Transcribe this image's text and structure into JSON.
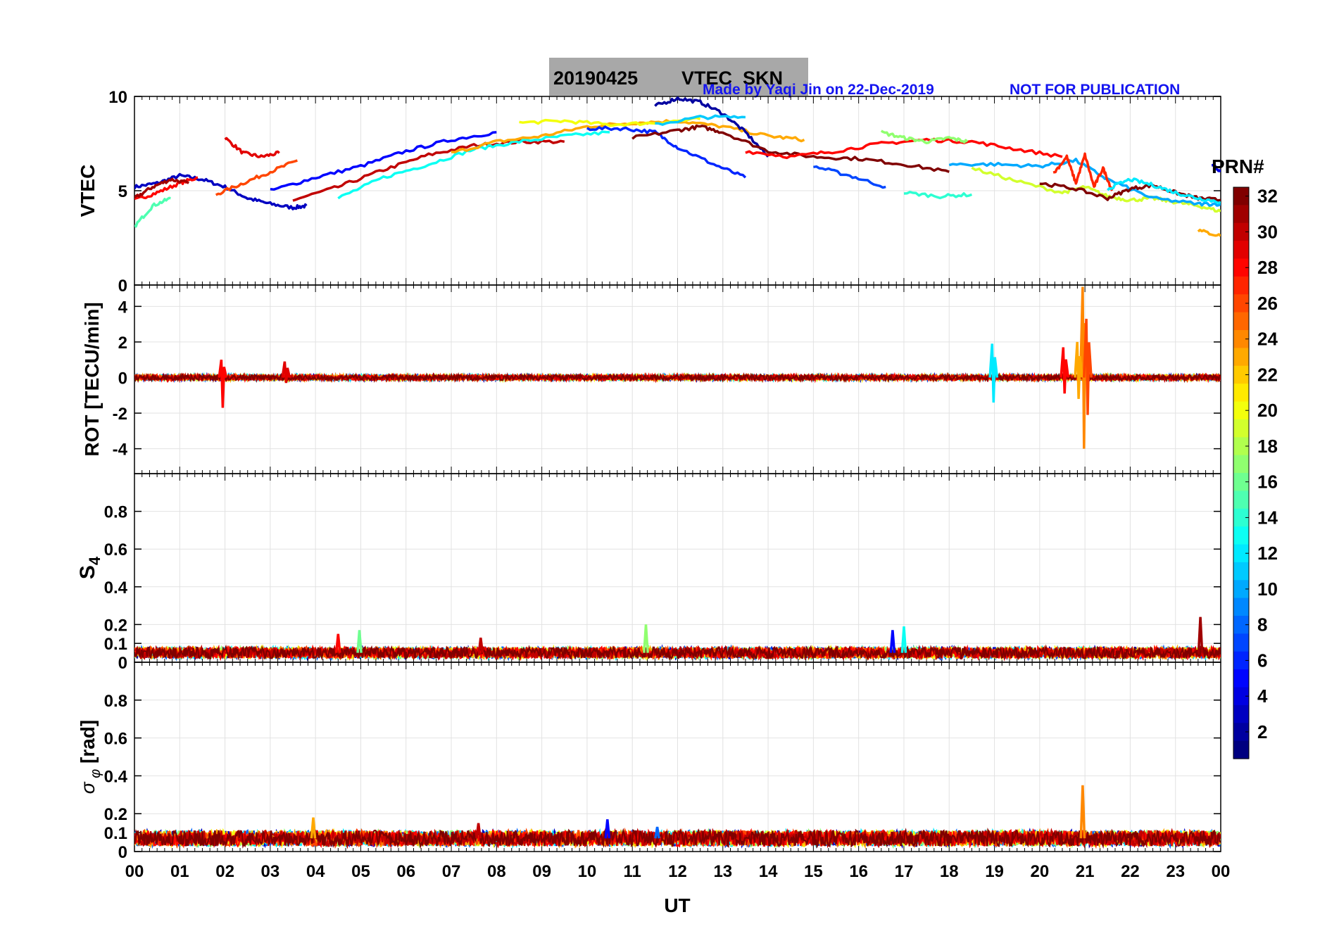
{
  "title_box": {
    "date": "20190425",
    "label": "VTEC  SKN"
  },
  "credit": "Made by Yaqi Jin on 22-Dec-2019",
  "notice": "NOT FOR PUBLICATION",
  "colorbar": {
    "title": "PRN#",
    "range": [
      1,
      32
    ],
    "ticks": [
      "2",
      "4",
      "6",
      "8",
      "10",
      "12",
      "14",
      "16",
      "18",
      "20",
      "22",
      "24",
      "26",
      "28",
      "30",
      "32"
    ],
    "colormap": "jet"
  },
  "x_axis": {
    "label": "UT",
    "range": [
      0,
      24
    ],
    "ticks": [
      "00",
      "01",
      "02",
      "03",
      "04",
      "05",
      "06",
      "07",
      "08",
      "09",
      "10",
      "11",
      "12",
      "13",
      "14",
      "15",
      "16",
      "17",
      "18",
      "19",
      "20",
      "21",
      "22",
      "23",
      "00"
    ]
  },
  "chart_data": [
    {
      "type": "line",
      "panel": "vtec",
      "ylabel": "VTEC",
      "ylim": [
        0,
        10
      ],
      "yticks": [
        "0",
        "5",
        "10"
      ],
      "grid": true,
      "series": [
        {
          "prn": 3,
          "x": [
            0.0,
            0.5,
            1.0,
            1.5,
            2.0,
            2.5,
            3.0,
            3.5,
            3.8
          ],
          "y": [
            5.2,
            5.4,
            5.8,
            5.6,
            5.2,
            4.6,
            4.3,
            4.1,
            4.2
          ]
        },
        {
          "prn": 28,
          "x": [
            0.0,
            0.5,
            1.0,
            1.4
          ],
          "y": [
            4.5,
            4.9,
            5.4,
            5.7
          ]
        },
        {
          "prn": 29,
          "x": [
            2.0,
            2.4,
            2.8,
            3.2
          ],
          "y": [
            7.8,
            7.0,
            6.8,
            7.0
          ]
        },
        {
          "prn": 31,
          "x": [
            0.0,
            0.4,
            0.8,
            1.2
          ],
          "y": [
            4.6,
            5.2,
            5.6,
            5.4
          ]
        },
        {
          "prn": 15,
          "x": [
            0.0,
            0.4,
            0.8
          ],
          "y": [
            3.1,
            4.2,
            4.6
          ]
        },
        {
          "prn": 26,
          "x": [
            1.8,
            2.4,
            3.0,
            3.6
          ],
          "y": [
            4.8,
            5.4,
            6.0,
            6.6
          ]
        },
        {
          "prn": 30,
          "x": [
            3.5,
            4.5,
            5.5,
            6.5,
            7.5,
            8.5,
            9.5
          ],
          "y": [
            4.5,
            5.2,
            6.1,
            6.9,
            7.4,
            7.6,
            7.6
          ]
        },
        {
          "prn": 5,
          "x": [
            3.0,
            4.0,
            5.0,
            6.0,
            7.0,
            8.0
          ],
          "y": [
            5.0,
            5.7,
            6.3,
            7.1,
            7.7,
            8.1
          ]
        },
        {
          "prn": 13,
          "x": [
            4.5,
            5.5,
            6.5,
            7.5,
            8.5,
            9.5,
            10.5
          ],
          "y": [
            4.6,
            5.7,
            6.4,
            7.2,
            7.6,
            7.9,
            8.1
          ]
        },
        {
          "prn": 23,
          "x": [
            7.0,
            8.0,
            9.0,
            10.0,
            11.0,
            12.0,
            13.0,
            14.0,
            14.8
          ],
          "y": [
            7.0,
            7.6,
            7.9,
            8.4,
            8.6,
            8.7,
            8.4,
            7.9,
            7.7
          ]
        },
        {
          "prn": 20,
          "x": [
            8.5,
            9.5,
            10.5,
            11.5,
            12.5
          ],
          "y": [
            8.6,
            8.7,
            8.5,
            8.6,
            8.8
          ]
        },
        {
          "prn": 2,
          "x": [
            11.5,
            12.0,
            12.5,
            13.0,
            13.5,
            14.0
          ],
          "y": [
            9.5,
            9.9,
            9.7,
            9.1,
            8.1,
            6.8
          ]
        },
        {
          "prn": 6,
          "x": [
            10.0,
            10.8,
            11.5,
            12.0,
            12.8,
            13.5
          ],
          "y": [
            8.3,
            8.3,
            8.1,
            7.3,
            6.4,
            5.7
          ]
        },
        {
          "prn": 32,
          "x": [
            11.0,
            12.0,
            12.5,
            13.0,
            14.0,
            15.0,
            16.0,
            17.0,
            18.0
          ],
          "y": [
            7.8,
            8.2,
            8.4,
            8.1,
            7.1,
            6.8,
            6.7,
            6.4,
            6.0
          ]
        },
        {
          "prn": 11,
          "x": [
            11.5,
            12.5,
            13.5
          ],
          "y": [
            8.5,
            8.9,
            8.9
          ]
        },
        {
          "prn": 28,
          "x": [
            13.5,
            14.5,
            15.5,
            16.5,
            17.5,
            18.5,
            19.5,
            20.5
          ],
          "y": [
            7.1,
            6.8,
            7.1,
            7.5,
            7.7,
            7.6,
            7.2,
            6.8
          ]
        },
        {
          "prn": 7,
          "x": [
            15.0,
            15.8,
            16.6
          ],
          "y": [
            6.3,
            5.8,
            5.2
          ]
        },
        {
          "prn": 17,
          "x": [
            16.5,
            17.0,
            17.5,
            18.0,
            18.4
          ],
          "y": [
            8.1,
            7.8,
            7.6,
            7.8,
            7.6
          ]
        },
        {
          "prn": 14,
          "x": [
            17.0,
            17.8,
            18.5
          ],
          "y": [
            4.9,
            4.7,
            4.8
          ]
        },
        {
          "prn": 19,
          "x": [
            18.5,
            19.5,
            20.5,
            21.0,
            21.5,
            22.0,
            22.5,
            23.0,
            23.5,
            24.0
          ],
          "y": [
            6.2,
            5.5,
            4.9,
            5.2,
            4.7,
            4.5,
            4.6,
            4.4,
            4.2,
            3.9
          ]
        },
        {
          "prn": 10,
          "x": [
            18.0,
            19.0,
            20.0,
            20.8,
            21.5,
            22.5,
            23.5,
            24.0
          ],
          "y": [
            6.4,
            6.4,
            6.3,
            6.6,
            5.6,
            4.6,
            4.3,
            4.3
          ]
        },
        {
          "prn": 27,
          "x": [
            20.3,
            20.6,
            20.8,
            21.0,
            21.2,
            21.4,
            21.6
          ],
          "y": [
            5.9,
            6.8,
            5.4,
            6.9,
            5.2,
            6.2,
            5.0
          ]
        },
        {
          "prn": 32,
          "x": [
            20.0,
            20.8,
            21.5,
            22.0,
            22.5,
            23.0,
            23.5,
            24.0
          ],
          "y": [
            5.4,
            5.1,
            4.6,
            5.1,
            5.3,
            4.9,
            4.6,
            4.5
          ]
        },
        {
          "prn": 12,
          "x": [
            21.5,
            22.0,
            22.5,
            23.0,
            23.5,
            24.0
          ],
          "y": [
            5.1,
            5.6,
            5.3,
            4.9,
            4.6,
            4.4
          ]
        },
        {
          "prn": 23,
          "x": [
            23.5,
            24.0
          ],
          "y": [
            2.9,
            2.6
          ]
        },
        {
          "prn": 4,
          "x": [
            23.8,
            24.0
          ],
          "y": [
            6.4,
            6.0
          ]
        }
      ]
    },
    {
      "type": "line",
      "panel": "rot",
      "ylabel": "ROT [TECU/min]",
      "ylim": [
        -5.4,
        5.2
      ],
      "yticks": [
        "-4",
        "-2",
        "0",
        "2",
        "4"
      ],
      "grid": true,
      "baseline_noise_amplitude": 0.15,
      "spikes": [
        {
          "prn": 28,
          "x": 1.95,
          "y_min": -1.7,
          "y_max": 1.0
        },
        {
          "prn": 29,
          "x": 3.35,
          "y_min": -0.3,
          "y_max": 0.9
        },
        {
          "prn": 12,
          "x": 18.98,
          "y_min": -1.4,
          "y_max": 1.9
        },
        {
          "prn": 28,
          "x": 20.55,
          "y_min": -0.9,
          "y_max": 1.7
        },
        {
          "prn": 24,
          "x": 20.98,
          "y_min": -4.0,
          "y_max": 5.1
        },
        {
          "prn": 23,
          "x": 20.86,
          "y_min": -1.2,
          "y_max": 2.0
        },
        {
          "prn": 26,
          "x": 21.06,
          "y_min": -2.1,
          "y_max": 3.3
        }
      ]
    },
    {
      "type": "line",
      "panel": "s4",
      "ylabel": "S4",
      "ylim": [
        0,
        1
      ],
      "yticks": [
        "0",
        "0.1",
        "0.2",
        "0.4",
        "0.6",
        "0.8"
      ],
      "grid": true,
      "baseline_level": 0.05,
      "spikes": [
        {
          "prn": 28,
          "x": 4.5,
          "y": 0.15
        },
        {
          "prn": 16,
          "x": 4.97,
          "y": 0.17
        },
        {
          "prn": 30,
          "x": 7.65,
          "y": 0.13
        },
        {
          "prn": 17,
          "x": 11.3,
          "y": 0.2
        },
        {
          "prn": 5,
          "x": 16.75,
          "y": 0.17
        },
        {
          "prn": 13,
          "x": 17.0,
          "y": 0.19
        },
        {
          "prn": 31,
          "x": 23.55,
          "y": 0.24
        }
      ]
    },
    {
      "type": "line",
      "panel": "sigma_phi",
      "ylabel": "σ_φ [rad]",
      "ylim": [
        0,
        1
      ],
      "yticks": [
        "0",
        "0.1",
        "0.2",
        "0.4",
        "0.6",
        "0.8"
      ],
      "grid": true,
      "baseline_level": 0.07,
      "spikes": [
        {
          "prn": 23,
          "x": 3.95,
          "y": 0.18
        },
        {
          "prn": 5,
          "x": 10.45,
          "y": 0.17
        },
        {
          "prn": 30,
          "x": 7.6,
          "y": 0.15
        },
        {
          "prn": 24,
          "x": 20.95,
          "y": 0.35
        },
        {
          "prn": 8,
          "x": 11.55,
          "y": 0.13
        }
      ]
    }
  ]
}
